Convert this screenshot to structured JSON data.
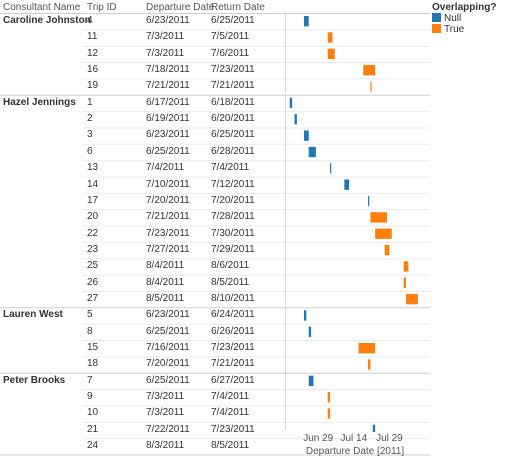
{
  "header": {
    "consultant_name": "Consultant Name",
    "trip_id": "Trip ID",
    "departure_date": "Departure Date",
    "return_date": "Return Date"
  },
  "legend": {
    "title": "Overlapping?",
    "items": [
      {
        "label": "Null",
        "color": "#1f77b4"
      },
      {
        "label": "True",
        "color": "#ff7f0e"
      }
    ]
  },
  "chart_data": {
    "type": "gantt",
    "xlabel": "Departure Date [2011]",
    "x_ticks": [
      "Jun 29",
      "Jul 14",
      "Jul 29"
    ],
    "x_tick_dates": [
      "2011-06-29",
      "2011-07-14",
      "2011-07-29"
    ],
    "x_range": [
      "2011-06-15",
      "2011-08-13"
    ],
    "groups": [
      {
        "consultant": "Caroline Johnston",
        "trips": [
          {
            "id": "4",
            "departure": "6/23/2011",
            "return": "6/25/2011",
            "overlapping": "Null"
          },
          {
            "id": "11",
            "departure": "7/3/2011",
            "return": "7/5/2011",
            "overlapping": "True"
          },
          {
            "id": "12",
            "departure": "7/3/2011",
            "return": "7/6/2011",
            "overlapping": "True"
          },
          {
            "id": "16",
            "departure": "7/18/2011",
            "return": "7/23/2011",
            "overlapping": "True"
          },
          {
            "id": "19",
            "departure": "7/21/2011",
            "return": "7/21/2011",
            "overlapping": "True"
          }
        ]
      },
      {
        "consultant": "Hazel Jennings",
        "trips": [
          {
            "id": "1",
            "departure": "6/17/2011",
            "return": "6/18/2011",
            "overlapping": "Null"
          },
          {
            "id": "2",
            "departure": "6/19/2011",
            "return": "6/20/2011",
            "overlapping": "Null"
          },
          {
            "id": "3",
            "departure": "6/23/2011",
            "return": "6/25/2011",
            "overlapping": "Null"
          },
          {
            "id": "6",
            "departure": "6/25/2011",
            "return": "6/28/2011",
            "overlapping": "Null"
          },
          {
            "id": "13",
            "departure": "7/4/2011",
            "return": "7/4/2011",
            "overlapping": "Null"
          },
          {
            "id": "14",
            "departure": "7/10/2011",
            "return": "7/12/2011",
            "overlapping": "Null"
          },
          {
            "id": "17",
            "departure": "7/20/2011",
            "return": "7/20/2011",
            "overlapping": "Null"
          },
          {
            "id": "20",
            "departure": "7/21/2011",
            "return": "7/28/2011",
            "overlapping": "True"
          },
          {
            "id": "22",
            "departure": "7/23/2011",
            "return": "7/30/2011",
            "overlapping": "True"
          },
          {
            "id": "23",
            "departure": "7/27/2011",
            "return": "7/29/2011",
            "overlapping": "True"
          },
          {
            "id": "25",
            "departure": "8/4/2011",
            "return": "8/6/2011",
            "overlapping": "True"
          },
          {
            "id": "26",
            "departure": "8/4/2011",
            "return": "8/5/2011",
            "overlapping": "True"
          },
          {
            "id": "27",
            "departure": "8/5/2011",
            "return": "8/10/2011",
            "overlapping": "True"
          }
        ]
      },
      {
        "consultant": "Lauren West",
        "trips": [
          {
            "id": "5",
            "departure": "6/23/2011",
            "return": "6/24/2011",
            "overlapping": "Null"
          },
          {
            "id": "8",
            "departure": "6/25/2011",
            "return": "6/26/2011",
            "overlapping": "Null"
          },
          {
            "id": "15",
            "departure": "7/16/2011",
            "return": "7/23/2011",
            "overlapping": "True"
          },
          {
            "id": "18",
            "departure": "7/20/2011",
            "return": "7/21/2011",
            "overlapping": "True"
          }
        ]
      },
      {
        "consultant": "Peter Brooks",
        "trips": [
          {
            "id": "7",
            "departure": "6/25/2011",
            "return": "6/27/2011",
            "overlapping": "Null"
          },
          {
            "id": "9",
            "departure": "7/3/2011",
            "return": "7/4/2011",
            "overlapping": "True"
          },
          {
            "id": "10",
            "departure": "7/3/2011",
            "return": "7/4/2011",
            "overlapping": "True"
          },
          {
            "id": "21",
            "departure": "7/22/2011",
            "return": "7/23/2011",
            "overlapping": "Null"
          },
          {
            "id": "24",
            "departure": "8/3/2011",
            "return": "8/5/2011",
            "overlapping": "Null"
          }
        ]
      }
    ]
  }
}
